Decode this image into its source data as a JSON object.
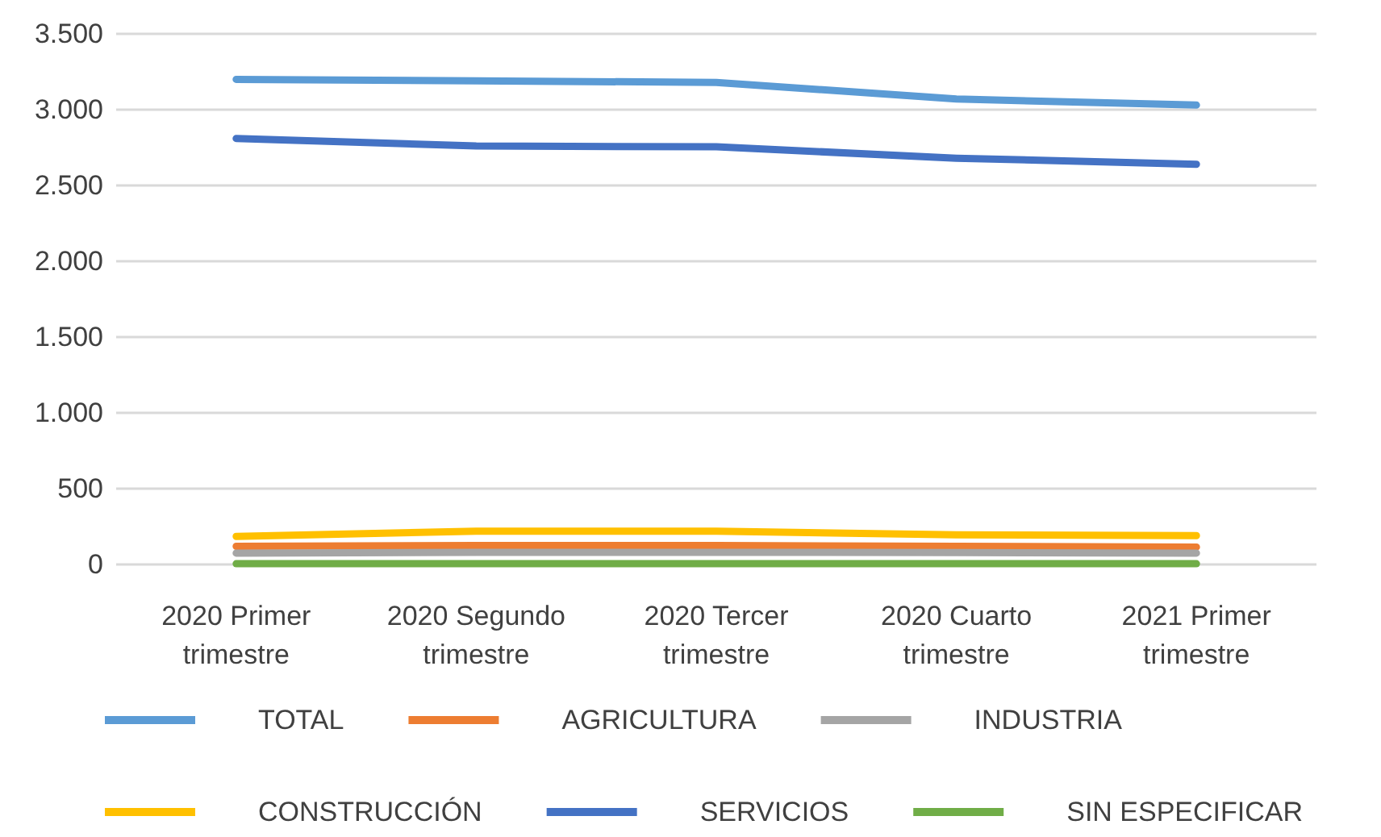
{
  "chart_data": {
    "type": "line",
    "categories": [
      "2020 Primer trimestre",
      "2020 Segundo trimestre",
      "2020 Tercer trimestre",
      "2020 Cuarto trimestre",
      "2021 Primer trimestre"
    ],
    "series": [
      {
        "name": "TOTAL",
        "color": "#5b9bd5",
        "values": [
          3200,
          3190,
          3180,
          3070,
          3030
        ]
      },
      {
        "name": "AGRICULTURA",
        "color": "#ed7d31",
        "values": [
          120,
          125,
          125,
          120,
          115
        ]
      },
      {
        "name": "INDUSTRIA",
        "color": "#a5a5a5",
        "values": [
          75,
          80,
          80,
          78,
          75
        ]
      },
      {
        "name": "CONSTRUCCIÓN",
        "color": "#ffc000",
        "values": [
          185,
          220,
          220,
          195,
          190
        ]
      },
      {
        "name": "SERVICIOS",
        "color": "#4472c4",
        "values": [
          2810,
          2760,
          2755,
          2680,
          2640
        ]
      },
      {
        "name": "SIN ESPECIFICAR",
        "color": "#70ad47",
        "values": [
          5,
          5,
          5,
          5,
          5
        ]
      }
    ],
    "ylim": [
      0,
      3500
    ],
    "yticks": [
      {
        "value": 0,
        "label": "0"
      },
      {
        "value": 500,
        "label": "500"
      },
      {
        "value": 1000,
        "label": "1.000"
      },
      {
        "value": 1500,
        "label": "1.500"
      },
      {
        "value": 2000,
        "label": "2.000"
      },
      {
        "value": 2500,
        "label": "2.500"
      },
      {
        "value": 3000,
        "label": "3.000"
      },
      {
        "value": 3500,
        "label": "3.500"
      }
    ],
    "grid": "y",
    "legend": "bottom",
    "marker": "none",
    "line_style": "solid"
  }
}
